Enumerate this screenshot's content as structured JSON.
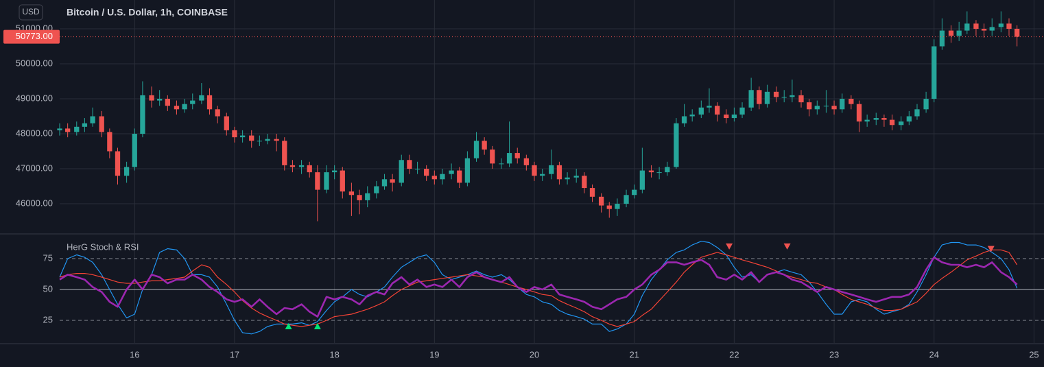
{
  "chart_data": [
    {
      "type": "candlestick",
      "title": "Bitcoin / U.S. Dollar, 1h, COINBASE",
      "currency": "USD",
      "x": [
        15.25,
        15.33,
        15.42,
        15.5,
        15.58,
        15.67,
        15.75,
        15.83,
        15.92,
        16,
        16.08,
        16.17,
        16.25,
        16.33,
        16.42,
        16.5,
        16.58,
        16.67,
        16.75,
        16.83,
        16.92,
        17,
        17.08,
        17.17,
        17.25,
        17.33,
        17.42,
        17.5,
        17.58,
        17.67,
        17.75,
        17.83,
        17.92,
        18,
        18.08,
        18.17,
        18.25,
        18.33,
        18.42,
        18.5,
        18.58,
        18.67,
        18.75,
        18.83,
        18.92,
        19,
        19.08,
        19.17,
        19.25,
        19.33,
        19.42,
        19.5,
        19.58,
        19.67,
        19.75,
        19.83,
        19.92,
        20,
        20.08,
        20.17,
        20.25,
        20.33,
        20.42,
        20.5,
        20.58,
        20.67,
        20.75,
        20.83,
        20.92,
        21,
        21.08,
        21.17,
        21.25,
        21.33,
        21.42,
        21.5,
        21.58,
        21.67,
        21.75,
        21.83,
        21.92,
        22,
        22.08,
        22.17,
        22.25,
        22.33,
        22.42,
        22.5,
        22.58,
        22.67,
        22.75,
        22.83,
        22.92,
        23,
        23.08,
        23.17,
        23.25,
        23.33,
        23.42,
        23.5,
        23.58,
        23.67,
        23.75,
        23.83,
        23.92,
        24,
        24.08,
        24.17,
        24.25,
        24.33,
        24.42,
        24.5,
        24.58,
        24.67,
        24.75,
        24.83
      ],
      "open": [
        48100,
        48150,
        48050,
        48200,
        48300,
        48500,
        48050,
        47500,
        46800,
        47050,
        48000,
        49100,
        48950,
        49000,
        48800,
        48700,
        48850,
        48950,
        49100,
        48700,
        48500,
        48100,
        47900,
        47950,
        47800,
        47800,
        47850,
        47800,
        47100,
        47050,
        47100,
        46900,
        46400,
        46900,
        46950,
        46350,
        46250,
        46100,
        46300,
        46500,
        46700,
        46600,
        47250,
        47000,
        47000,
        46800,
        46700,
        46850,
        46950,
        46600,
        47300,
        47800,
        47550,
        47150,
        47150,
        47450,
        47300,
        47100,
        46800,
        46850,
        47100,
        46700,
        46750,
        46800,
        46450,
        46200,
        45950,
        45850,
        46000,
        46250,
        46400,
        46950,
        46900,
        46900,
        47050,
        48300,
        48500,
        48550,
        48750,
        48800,
        48550,
        48450,
        48550,
        48750,
        49250,
        48850,
        49200,
        49050,
        49050,
        49100,
        48900,
        48700,
        48800,
        48800,
        48700,
        49000,
        48850,
        48350,
        48400,
        48450,
        48400,
        48250,
        48350,
        48500,
        48700,
        49000,
        50500,
        50950,
        50800,
        50950,
        51150,
        51000,
        50950,
        51050,
        51150,
        51000
      ],
      "high": [
        48300,
        48300,
        48350,
        48450,
        48750,
        48650,
        48150,
        47600,
        47200,
        48150,
        49500,
        49350,
        49250,
        49100,
        48950,
        49000,
        49150,
        49450,
        49300,
        48800,
        48600,
        48200,
        48100,
        48100,
        47950,
        48000,
        48000,
        47900,
        47250,
        47250,
        47200,
        47100,
        47100,
        47100,
        47050,
        46600,
        46400,
        46500,
        46650,
        46850,
        46850,
        47400,
        47400,
        47200,
        47100,
        46950,
        47000,
        47150,
        47050,
        47500,
        48050,
        47900,
        47650,
        47300,
        48350,
        47600,
        47400,
        47200,
        47000,
        47550,
        47200,
        46900,
        47000,
        46900,
        46550,
        46300,
        46050,
        46150,
        46400,
        46550,
        47600,
        47100,
        47050,
        47200,
        48450,
        48850,
        48700,
        48950,
        49300,
        48900,
        48700,
        48750,
        48900,
        49600,
        49350,
        49400,
        49350,
        49250,
        49550,
        49250,
        49000,
        48950,
        49250,
        48950,
        49150,
        49100,
        48950,
        48550,
        48600,
        48550,
        48550,
        48500,
        48650,
        48850,
        49200,
        50700,
        51300,
        51100,
        51200,
        51500,
        51250,
        51150,
        51300,
        51500,
        51300,
        51100
      ],
      "low": [
        47950,
        47900,
        47950,
        48050,
        48200,
        47900,
        47300,
        46550,
        46600,
        46950,
        47900,
        48750,
        48800,
        48650,
        48550,
        48600,
        48700,
        48850,
        48550,
        48300,
        47950,
        47750,
        47750,
        47600,
        47650,
        47700,
        47500,
        46950,
        46900,
        46850,
        46750,
        45500,
        46300,
        46700,
        46150,
        45650,
        45700,
        45900,
        46150,
        46400,
        46350,
        46500,
        46850,
        46850,
        46650,
        46550,
        46550,
        46700,
        46450,
        46500,
        47200,
        47400,
        47000,
        47000,
        47050,
        47150,
        46950,
        46650,
        46650,
        46700,
        46550,
        46550,
        46600,
        46300,
        46050,
        45750,
        45600,
        45650,
        45900,
        46150,
        46300,
        46750,
        46700,
        46800,
        47000,
        48200,
        48350,
        48450,
        48600,
        48350,
        48300,
        48350,
        48450,
        48650,
        48700,
        48750,
        48900,
        48900,
        48900,
        48750,
        48500,
        48550,
        48600,
        48550,
        48600,
        48700,
        48050,
        48200,
        48250,
        48200,
        48100,
        48100,
        48250,
        48400,
        48600,
        48900,
        50400,
        50600,
        50650,
        50850,
        50800,
        50750,
        50800,
        50900,
        50800,
        50500
      ],
      "close": [
        48150,
        48050,
        48200,
        48300,
        48500,
        48050,
        47500,
        46800,
        47050,
        48000,
        49100,
        48950,
        49000,
        48800,
        48700,
        48850,
        48950,
        49100,
        48700,
        48500,
        48100,
        47900,
        47950,
        47800,
        47800,
        47850,
        47800,
        47100,
        47050,
        47100,
        46900,
        46400,
        46900,
        46950,
        46350,
        46250,
        46100,
        46300,
        46500,
        46700,
        46600,
        47250,
        47000,
        47000,
        46800,
        46700,
        46850,
        46950,
        46600,
        47300,
        47800,
        47550,
        47150,
        47150,
        47450,
        47300,
        47100,
        46800,
        46850,
        47100,
        46700,
        46750,
        46800,
        46450,
        46200,
        45950,
        45850,
        46000,
        46250,
        46400,
        46950,
        46900,
        46900,
        47050,
        48300,
        48500,
        48550,
        48750,
        48800,
        48550,
        48450,
        48550,
        48750,
        49250,
        48850,
        49200,
        49050,
        49050,
        49100,
        48900,
        48700,
        48800,
        48800,
        48700,
        49000,
        48850,
        48350,
        48400,
        48450,
        48400,
        48250,
        48350,
        48500,
        48700,
        49000,
        50500,
        50950,
        50800,
        50950,
        51150,
        51000,
        50950,
        51050,
        51150,
        51000,
        50773
      ],
      "up_color": "#26a69a",
      "down_color": "#ef5350",
      "xlim": [
        15.25,
        25.1
      ],
      "ylim": [
        45157,
        51824
      ],
      "yticks": [
        {
          "value": 46000,
          "label": "46000.00"
        },
        {
          "value": 47000,
          "label": "47000.00"
        },
        {
          "value": 48000,
          "label": "48000.00"
        },
        {
          "value": 49000,
          "label": "49000.00"
        },
        {
          "value": 50000,
          "label": "50000.00"
        },
        {
          "value": 51000,
          "label": "51000.00"
        }
      ],
      "last_price": {
        "value": 50773,
        "label": "50773.00",
        "color": "#ef5350"
      },
      "grid": true
    },
    {
      "type": "line",
      "title": "HerG Stoch & RSI",
      "x": [
        15.25,
        15.33,
        15.42,
        15.5,
        15.58,
        15.67,
        15.75,
        15.83,
        15.92,
        16,
        16.08,
        16.17,
        16.25,
        16.33,
        16.42,
        16.5,
        16.58,
        16.67,
        16.75,
        16.83,
        16.92,
        17,
        17.08,
        17.17,
        17.25,
        17.33,
        17.42,
        17.5,
        17.58,
        17.67,
        17.75,
        17.83,
        17.92,
        18,
        18.08,
        18.17,
        18.25,
        18.33,
        18.42,
        18.5,
        18.58,
        18.67,
        18.75,
        18.83,
        18.92,
        19,
        19.08,
        19.17,
        19.25,
        19.33,
        19.42,
        19.5,
        19.58,
        19.67,
        19.75,
        19.83,
        19.92,
        20,
        20.08,
        20.17,
        20.25,
        20.33,
        20.42,
        20.5,
        20.58,
        20.67,
        20.75,
        20.83,
        20.92,
        21,
        21.08,
        21.17,
        21.25,
        21.33,
        21.42,
        21.5,
        21.58,
        21.67,
        21.75,
        21.83,
        21.92,
        22,
        22.08,
        22.17,
        22.25,
        22.33,
        22.42,
        22.5,
        22.58,
        22.67,
        22.75,
        22.83,
        22.92,
        23,
        23.08,
        23.17,
        23.25,
        23.33,
        23.42,
        23.5,
        23.58,
        23.67,
        23.75,
        23.83,
        23.92,
        24,
        24.08,
        24.17,
        24.25,
        24.33,
        24.42,
        24.5,
        24.58,
        24.67,
        24.75,
        24.83
      ],
      "series": [
        {
          "color": "#2196f3",
          "width": 1.2,
          "values": [
            60,
            75,
            78,
            76,
            72,
            62,
            50,
            38,
            27,
            30,
            50,
            62,
            80,
            83,
            82,
            75,
            62,
            62,
            60,
            52,
            38,
            25,
            15,
            14,
            16,
            20,
            22,
            22,
            22,
            23,
            21,
            24,
            33,
            40,
            44,
            50,
            46,
            44,
            48,
            52,
            60,
            68,
            72,
            76,
            78,
            72,
            62,
            58,
            60,
            62,
            65,
            62,
            60,
            62,
            58,
            52,
            46,
            44,
            40,
            38,
            33,
            30,
            28,
            26,
            22,
            22,
            16,
            18,
            22,
            30,
            45,
            58,
            66,
            74,
            80,
            82,
            86,
            89,
            88,
            84,
            78,
            68,
            60,
            62,
            56,
            62,
            64,
            66,
            64,
            62,
            56,
            48,
            38,
            30,
            30,
            40,
            42,
            40,
            34,
            30,
            32,
            34,
            38,
            48,
            62,
            76,
            86,
            88,
            88,
            86,
            86,
            84,
            80,
            75,
            66,
            51
          ]
        },
        {
          "color": "#f44336",
          "width": 1.2,
          "values": [
            60,
            62,
            63,
            63,
            62,
            60,
            58,
            56,
            55,
            55,
            56,
            57,
            57,
            58,
            59,
            60,
            65,
            70,
            68,
            60,
            54,
            48,
            41,
            35,
            31,
            28,
            25,
            22,
            21,
            20,
            21,
            22,
            25,
            28,
            29,
            30,
            32,
            34,
            37,
            40,
            45,
            50,
            53,
            56,
            57,
            58,
            59,
            60,
            61,
            62,
            61,
            60,
            58,
            56,
            54,
            52,
            50,
            48,
            46,
            45,
            41,
            38,
            35,
            32,
            28,
            25,
            22,
            20,
            22,
            24,
            29,
            34,
            41,
            48,
            56,
            64,
            70,
            76,
            78,
            80,
            78,
            76,
            74,
            72,
            70,
            68,
            65,
            62,
            60,
            58,
            56,
            55,
            52,
            50,
            46,
            42,
            40,
            38,
            35,
            33,
            33,
            34,
            37,
            40,
            47,
            54,
            59,
            64,
            69,
            74,
            77,
            80,
            82,
            82,
            80,
            70
          ]
        },
        {
          "color": "#9c27b0",
          "width": 2.6,
          "values": [
            58,
            62,
            60,
            58,
            52,
            48,
            40,
            36,
            50,
            58,
            50,
            62,
            60,
            55,
            58,
            58,
            62,
            58,
            52,
            48,
            42,
            40,
            42,
            36,
            42,
            36,
            30,
            35,
            34,
            38,
            32,
            28,
            44,
            42,
            44,
            42,
            38,
            45,
            48,
            46,
            55,
            60,
            54,
            58,
            52,
            54,
            52,
            58,
            52,
            60,
            64,
            60,
            58,
            56,
            60,
            52,
            48,
            52,
            50,
            54,
            46,
            44,
            42,
            40,
            36,
            34,
            38,
            42,
            44,
            50,
            54,
            62,
            66,
            72,
            72,
            70,
            72,
            74,
            70,
            60,
            58,
            62,
            58,
            64,
            56,
            62,
            64,
            62,
            58,
            56,
            52,
            48,
            52,
            50,
            48,
            46,
            44,
            42,
            40,
            42,
            44,
            44,
            46,
            52,
            66,
            76,
            72,
            70,
            70,
            68,
            70,
            68,
            72,
            64,
            60,
            54
          ]
        }
      ],
      "signals": {
        "up": {
          "x": [
            17.54,
            17.83
          ],
          "values": [
            20,
            20
          ],
          "color": "#00e676"
        },
        "down": {
          "x": [
            21.95,
            22.53,
            24.57
          ],
          "values": [
            85,
            85,
            83
          ],
          "color": "#ef5350"
        }
      },
      "xlim": [
        15.25,
        25.1
      ],
      "ylim": [
        6.7,
        94.4
      ],
      "yticks": [
        25,
        50,
        75
      ],
      "xticks": [
        16,
        17,
        18,
        19,
        20,
        21,
        22,
        23,
        24,
        25
      ]
    }
  ]
}
